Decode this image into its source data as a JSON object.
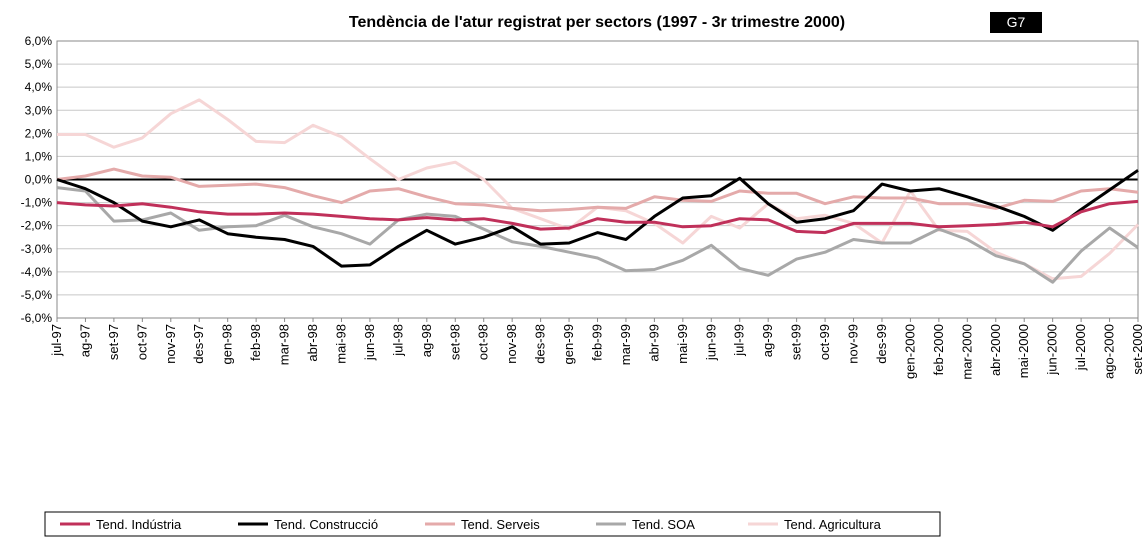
{
  "chart_data": {
    "type": "line",
    "title": "Tendència de l'atur registrat per sectors (1997 - 3r trimestre 2000)",
    "badge": "G7",
    "categories": [
      "jul-97",
      "ag-97",
      "set-97",
      "oct-97",
      "nov-97",
      "des-97",
      "gen-98",
      "feb-98",
      "mar-98",
      "abr-98",
      "mai-98",
      "jun-98",
      "jul-98",
      "ag-98",
      "set-98",
      "oct-98",
      "nov-98",
      "des-98",
      "gen-99",
      "feb-99",
      "mar-99",
      "abr-99",
      "mai-99",
      "jun-99",
      "jul-99",
      "ag-99",
      "set-99",
      "oct-99",
      "nov-99",
      "des-99",
      "gen-2000",
      "feb-2000",
      "mar-2000",
      "abr-2000",
      "mai-2000",
      "jun-2000",
      "jul-2000",
      "ago-2000",
      "set-2000"
    ],
    "series": [
      {
        "name": "Tend. Indústria",
        "color": "#c0305a",
        "values": [
          -1.0,
          -1.1,
          -1.15,
          -1.05,
          -1.2,
          -1.4,
          -1.5,
          -1.5,
          -1.45,
          -1.5,
          -1.6,
          -1.7,
          -1.75,
          -1.65,
          -1.75,
          -1.7,
          -1.9,
          -2.15,
          -2.1,
          -1.7,
          -1.85,
          -1.85,
          -2.05,
          -2.0,
          -1.7,
          -1.75,
          -2.25,
          -2.3,
          -1.9,
          -1.9,
          -1.9,
          -2.05,
          -2.0,
          -1.95,
          -1.85,
          -2.05,
          -1.4,
          -1.05,
          -0.95
        ]
      },
      {
        "name": "Tend. Construcció",
        "color": "#000000",
        "values": [
          0,
          -0.4,
          -1.0,
          -1.8,
          -2.05,
          -1.75,
          -2.35,
          -2.5,
          -2.6,
          -2.9,
          -3.75,
          -3.7,
          -2.9,
          -2.2,
          -2.8,
          -2.5,
          -2.05,
          -2.8,
          -2.75,
          -2.3,
          -2.6,
          -1.6,
          -0.8,
          -0.7,
          0.05,
          -1.05,
          -1.85,
          -1.7,
          -1.35,
          -0.2,
          -0.5,
          -0.4,
          -0.75,
          -1.15,
          -1.6,
          -2.2,
          -1.3,
          -0.45,
          0.4
        ]
      },
      {
        "name": "Tend. Serveis",
        "color": "#e4aaaa",
        "values": [
          0,
          0.15,
          0.45,
          0.15,
          0.1,
          -0.3,
          -0.25,
          -0.2,
          -0.35,
          -0.7,
          -1.0,
          -0.5,
          -0.4,
          -0.75,
          -1.05,
          -1.1,
          -1.25,
          -1.35,
          -1.3,
          -1.2,
          -1.25,
          -0.75,
          -0.9,
          -0.95,
          -0.5,
          -0.6,
          -0.6,
          -1.05,
          -0.75,
          -0.8,
          -0.8,
          -1.05,
          -1.05,
          -1.25,
          -0.9,
          -0.95,
          -0.5,
          -0.4,
          -0.55
        ]
      },
      {
        "name": "Tend. SOA",
        "color": "#a8a8a8",
        "values": [
          -0.35,
          -0.5,
          -1.8,
          -1.75,
          -1.45,
          -2.2,
          -2.05,
          -2.0,
          -1.55,
          -2.05,
          -2.35,
          -2.8,
          -1.75,
          -1.5,
          -1.6,
          -2.15,
          -2.7,
          -2.9,
          -3.15,
          -3.4,
          -3.95,
          -3.9,
          -3.5,
          -2.85,
          -3.85,
          -4.15,
          -3.45,
          -3.15,
          -2.6,
          -2.75,
          -2.75,
          -2.15,
          -2.6,
          -3.3,
          -3.65,
          -4.45,
          -3.1,
          -2.1,
          -2.95
        ]
      },
      {
        "name": "Tend. Agricultura",
        "color": "#f6d6d6",
        "values": [
          1.95,
          1.95,
          1.4,
          1.8,
          2.85,
          3.45,
          2.6,
          1.65,
          1.6,
          2.35,
          1.85,
          0.9,
          0.0,
          0.5,
          0.75,
          0.0,
          -1.25,
          -1.7,
          -2.15,
          -1.2,
          -1.35,
          -1.9,
          -2.75,
          -1.6,
          -2.1,
          -1.05,
          -1.7,
          -1.55,
          -1.9,
          -2.75,
          -0.5,
          -2.2,
          -2.25,
          -3.15,
          -3.65,
          -4.3,
          -4.2,
          -3.2,
          -1.95
        ]
      }
    ],
    "ylim": [
      -6,
      6
    ],
    "yticks": [
      {
        "value": -6,
        "label": "-6,0%"
      },
      {
        "value": -5,
        "label": "-5,0%"
      },
      {
        "value": -4,
        "label": "-4,0%"
      },
      {
        "value": -3,
        "label": "-3,0%"
      },
      {
        "value": -2,
        "label": "-2,0%"
      },
      {
        "value": -1,
        "label": "-1,0%"
      },
      {
        "value": 0,
        "label": "0,0%"
      },
      {
        "value": 1,
        "label": "1,0%"
      },
      {
        "value": 2,
        "label": "2,0%"
      },
      {
        "value": 3,
        "label": "3,0%"
      },
      {
        "value": 4,
        "label": "4,0%"
      },
      {
        "value": 5,
        "label": "5,0%"
      },
      {
        "value": 6,
        "label": "6,0%"
      }
    ],
    "grid": true,
    "legend": "bottom"
  }
}
